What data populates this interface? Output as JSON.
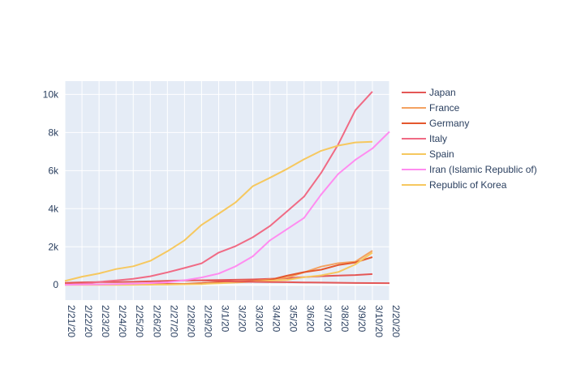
{
  "chart_data": {
    "type": "line",
    "title": "",
    "xlabel": "",
    "ylabel": "",
    "x_tick_labels": [
      "2/21/20",
      "2/22/20",
      "2/23/20",
      "2/24/20",
      "2/25/20",
      "2/26/20",
      "2/27/20",
      "2/28/20",
      "2/29/20",
      "3/1/20",
      "3/2/20",
      "3/3/20",
      "3/4/20",
      "3/5/20",
      "3/6/20",
      "3/7/20",
      "3/8/20",
      "3/9/20",
      "3/10/20",
      "2/20/20"
    ],
    "y_tick_labels": [
      "0",
      "2k",
      "4k",
      "6k",
      "8k",
      "10k"
    ],
    "y_ticks": [
      0,
      2000,
      4000,
      6000,
      8000,
      10000
    ],
    "ylim": [
      -800,
      10700
    ],
    "grid": true,
    "legend_position": "right",
    "plot_bg": "#e5ecf6",
    "series": [
      {
        "name": "Japan",
        "color": "#e45756",
        "values": [
          105,
          132,
          144,
          144,
          164,
          186,
          210,
          230,
          239,
          254,
          268,
          284,
          317,
          349,
          408,
          455,
          488,
          514,
          568
        ]
      },
      {
        "name": "France",
        "color": "#f4a261",
        "values": [
          12,
          12,
          12,
          12,
          14,
          18,
          38,
          57,
          100,
          130,
          191,
          204,
          288,
          380,
          656,
          957,
          1136,
          1219,
          1794
        ]
      },
      {
        "name": "Germany",
        "color": "#e4572e",
        "values": [
          16,
          16,
          16,
          16,
          17,
          27,
          46,
          48,
          79,
          130,
          159,
          196,
          262,
          482,
          670,
          799,
          1040,
          1176,
          1457
        ]
      },
      {
        "name": "Italy",
        "color": "#f06a84",
        "values": [
          20,
          62,
          155,
          229,
          322,
          453,
          655,
          888,
          1128,
          1694,
          2036,
          2502,
          3089,
          3858,
          4636,
          5883,
          7375,
          9172,
          10149
        ]
      },
      {
        "name": "Spain",
        "color": "#f6c85f",
        "values": [
          2,
          2,
          2,
          2,
          6,
          13,
          15,
          32,
          45,
          84,
          120,
          165,
          222,
          259,
          400,
          500,
          673,
          1073,
          1695
        ]
      },
      {
        "name": "Iran (Islamic Republic of)",
        "color": "#ff8cf0",
        "values": [
          5,
          18,
          28,
          43,
          61,
          95,
          139,
          245,
          388,
          593,
          978,
          1501,
          2336,
          2922,
          3513,
          4747,
          5823,
          6566,
          7161,
          8042
        ]
      },
      {
        "name": "Republic of Korea",
        "color": "#f6c85f",
        "values": [
          204,
          433,
          602,
          833,
          977,
          1261,
          1766,
          2337,
          3150,
          3736,
          4335,
          5186,
          5621,
          6088,
          6593,
          7041,
          7314,
          7478,
          7513
        ]
      }
    ],
    "extra_lines": [
      {
        "name": "Japan",
        "color": "#e45756",
        "from_index": 8,
        "values": [
          239,
          200,
          170,
          160,
          150,
          140,
          130,
          120,
          110,
          100,
          95,
          90
        ]
      }
    ]
  }
}
